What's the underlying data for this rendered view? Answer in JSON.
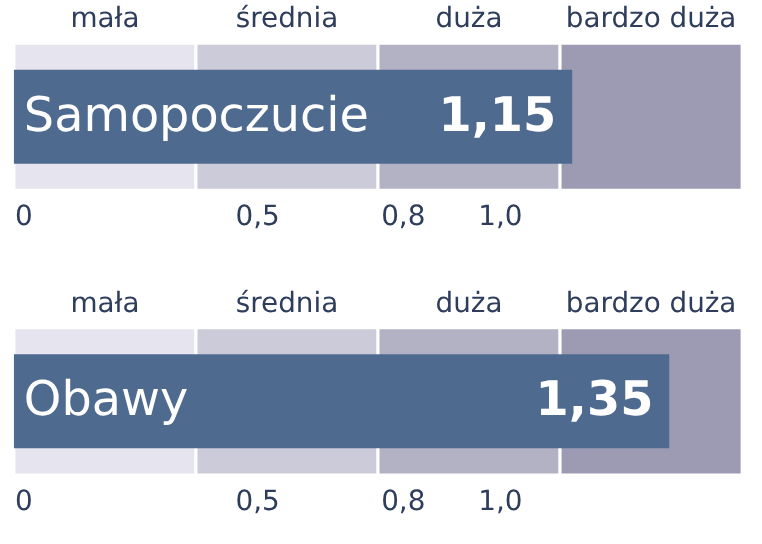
{
  "chart_data": [
    {
      "type": "bar",
      "orientation": "horizontal",
      "categories": [
        "Samopoczucie"
      ],
      "values": [
        1.15
      ],
      "value_labels": [
        "1,15"
      ],
      "color": "#4f6a8f",
      "xlim": [
        0,
        1.5
      ],
      "xticks": [
        0,
        {
          "value": 0.5,
          "label": "0,5"
        },
        {
          "value": 0.8,
          "label": "0,8"
        },
        {
          "value": 1.0,
          "label": "1,0"
        }
      ],
      "bands": [
        {
          "axis": "x",
          "from": 0,
          "to": 0.375,
          "label": "mała",
          "color": "#e6e4ee"
        },
        {
          "axis": "x",
          "from": 0.375,
          "to": 0.75,
          "label": "średnia",
          "color": "#cccbd9"
        },
        {
          "axis": "x",
          "from": 0.75,
          "to": 1.125,
          "label": "duża",
          "color": "#b3b1c4"
        },
        {
          "axis": "x",
          "from": 1.125,
          "to": 1.5,
          "label": "bardzo duża",
          "color": "#9d9bb4"
        }
      ],
      "tick_labels": "x",
      "grid": false
    },
    {
      "type": "bar",
      "orientation": "horizontal",
      "categories": [
        "Obawy"
      ],
      "values": [
        1.35
      ],
      "value_labels": [
        "1,35"
      ],
      "color": "#4f6a8f",
      "xlim": [
        0,
        1.5
      ],
      "xticks": [
        0,
        {
          "value": 0.5,
          "label": "0,5"
        },
        {
          "value": 0.8,
          "label": "0,8"
        },
        {
          "value": 1.0,
          "label": "1,0"
        }
      ],
      "bands": [
        {
          "axis": "x",
          "from": 0,
          "to": 0.375,
          "label": "mała",
          "color": "#e6e4ee"
        },
        {
          "axis": "x",
          "from": 0.375,
          "to": 0.75,
          "label": "średnia",
          "color": "#cccbd9"
        },
        {
          "axis": "x",
          "from": 0.75,
          "to": 1.125,
          "label": "duża",
          "color": "#b3b1c4"
        },
        {
          "axis": "x",
          "from": 1.125,
          "to": 1.5,
          "label": "bardzo duża",
          "color": "#9d9bb4"
        }
      ],
      "tick_labels": "x",
      "grid": false
    }
  ]
}
